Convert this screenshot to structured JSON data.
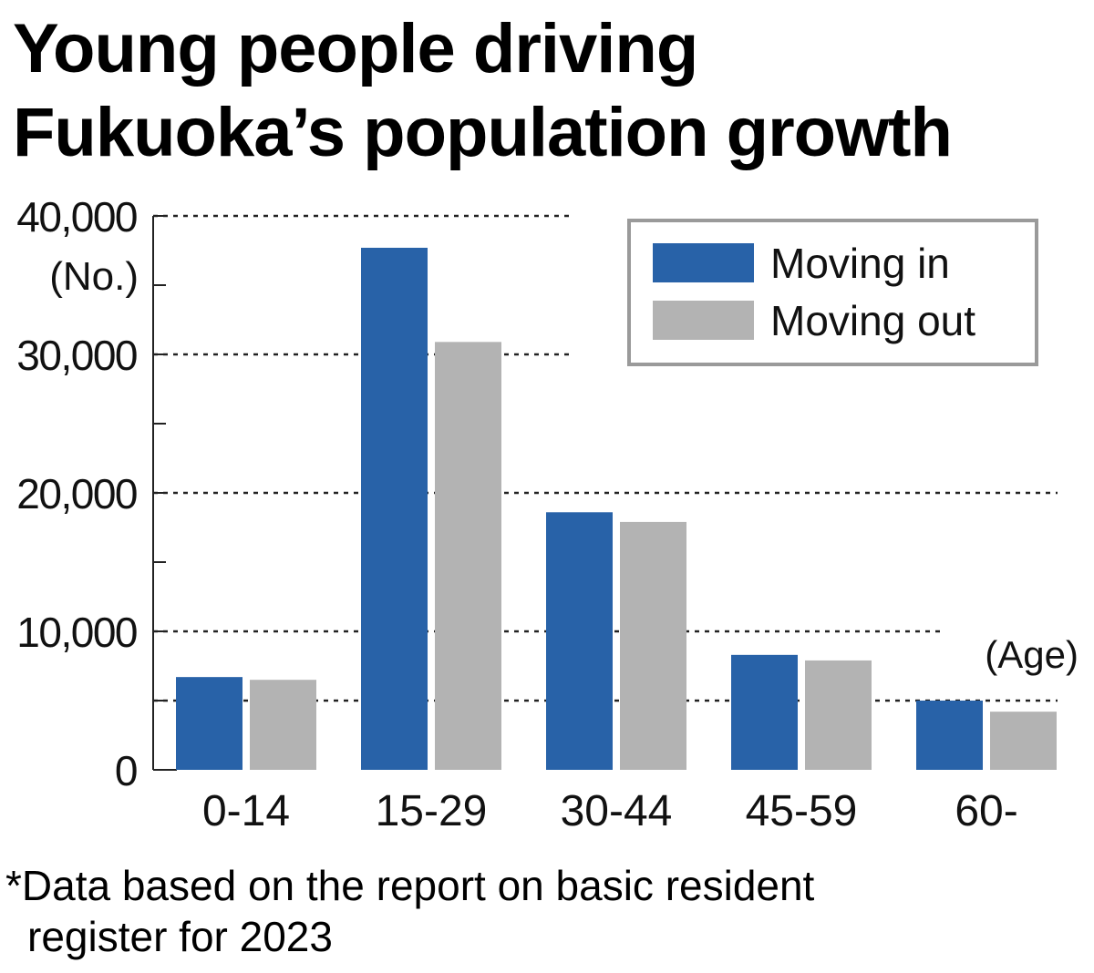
{
  "title_lines": [
    "Young people driving",
    "Fukuoka’s population growth"
  ],
  "footnote_lines": [
    "*Data based on the report on basic resident",
    "register for 2023"
  ],
  "chart_data": {
    "type": "bar",
    "title": "Young people driving Fukuoka’s population growth",
    "categories": [
      "0-14",
      "15-29",
      "30-44",
      "45-59",
      "60-"
    ],
    "series": [
      {
        "name": "Moving in",
        "values": [
          6700,
          37700,
          18600,
          8300,
          5000
        ],
        "color": "#2862a8"
      },
      {
        "name": "Moving out",
        "values": [
          6500,
          30900,
          17900,
          7900,
          4200
        ],
        "color": "#b3b3b3"
      }
    ],
    "ylim": [
      0,
      40000
    ],
    "yticks": [
      0,
      10000,
      20000,
      30000,
      40000
    ],
    "ytick_labels": [
      "0",
      "10,000",
      "20,000",
      "30,000",
      "40,000"
    ],
    "yunit": "(No.)",
    "xunit": "(Age)",
    "reference_line": 5000,
    "grid": "dashed",
    "legend_position": "top-right"
  }
}
